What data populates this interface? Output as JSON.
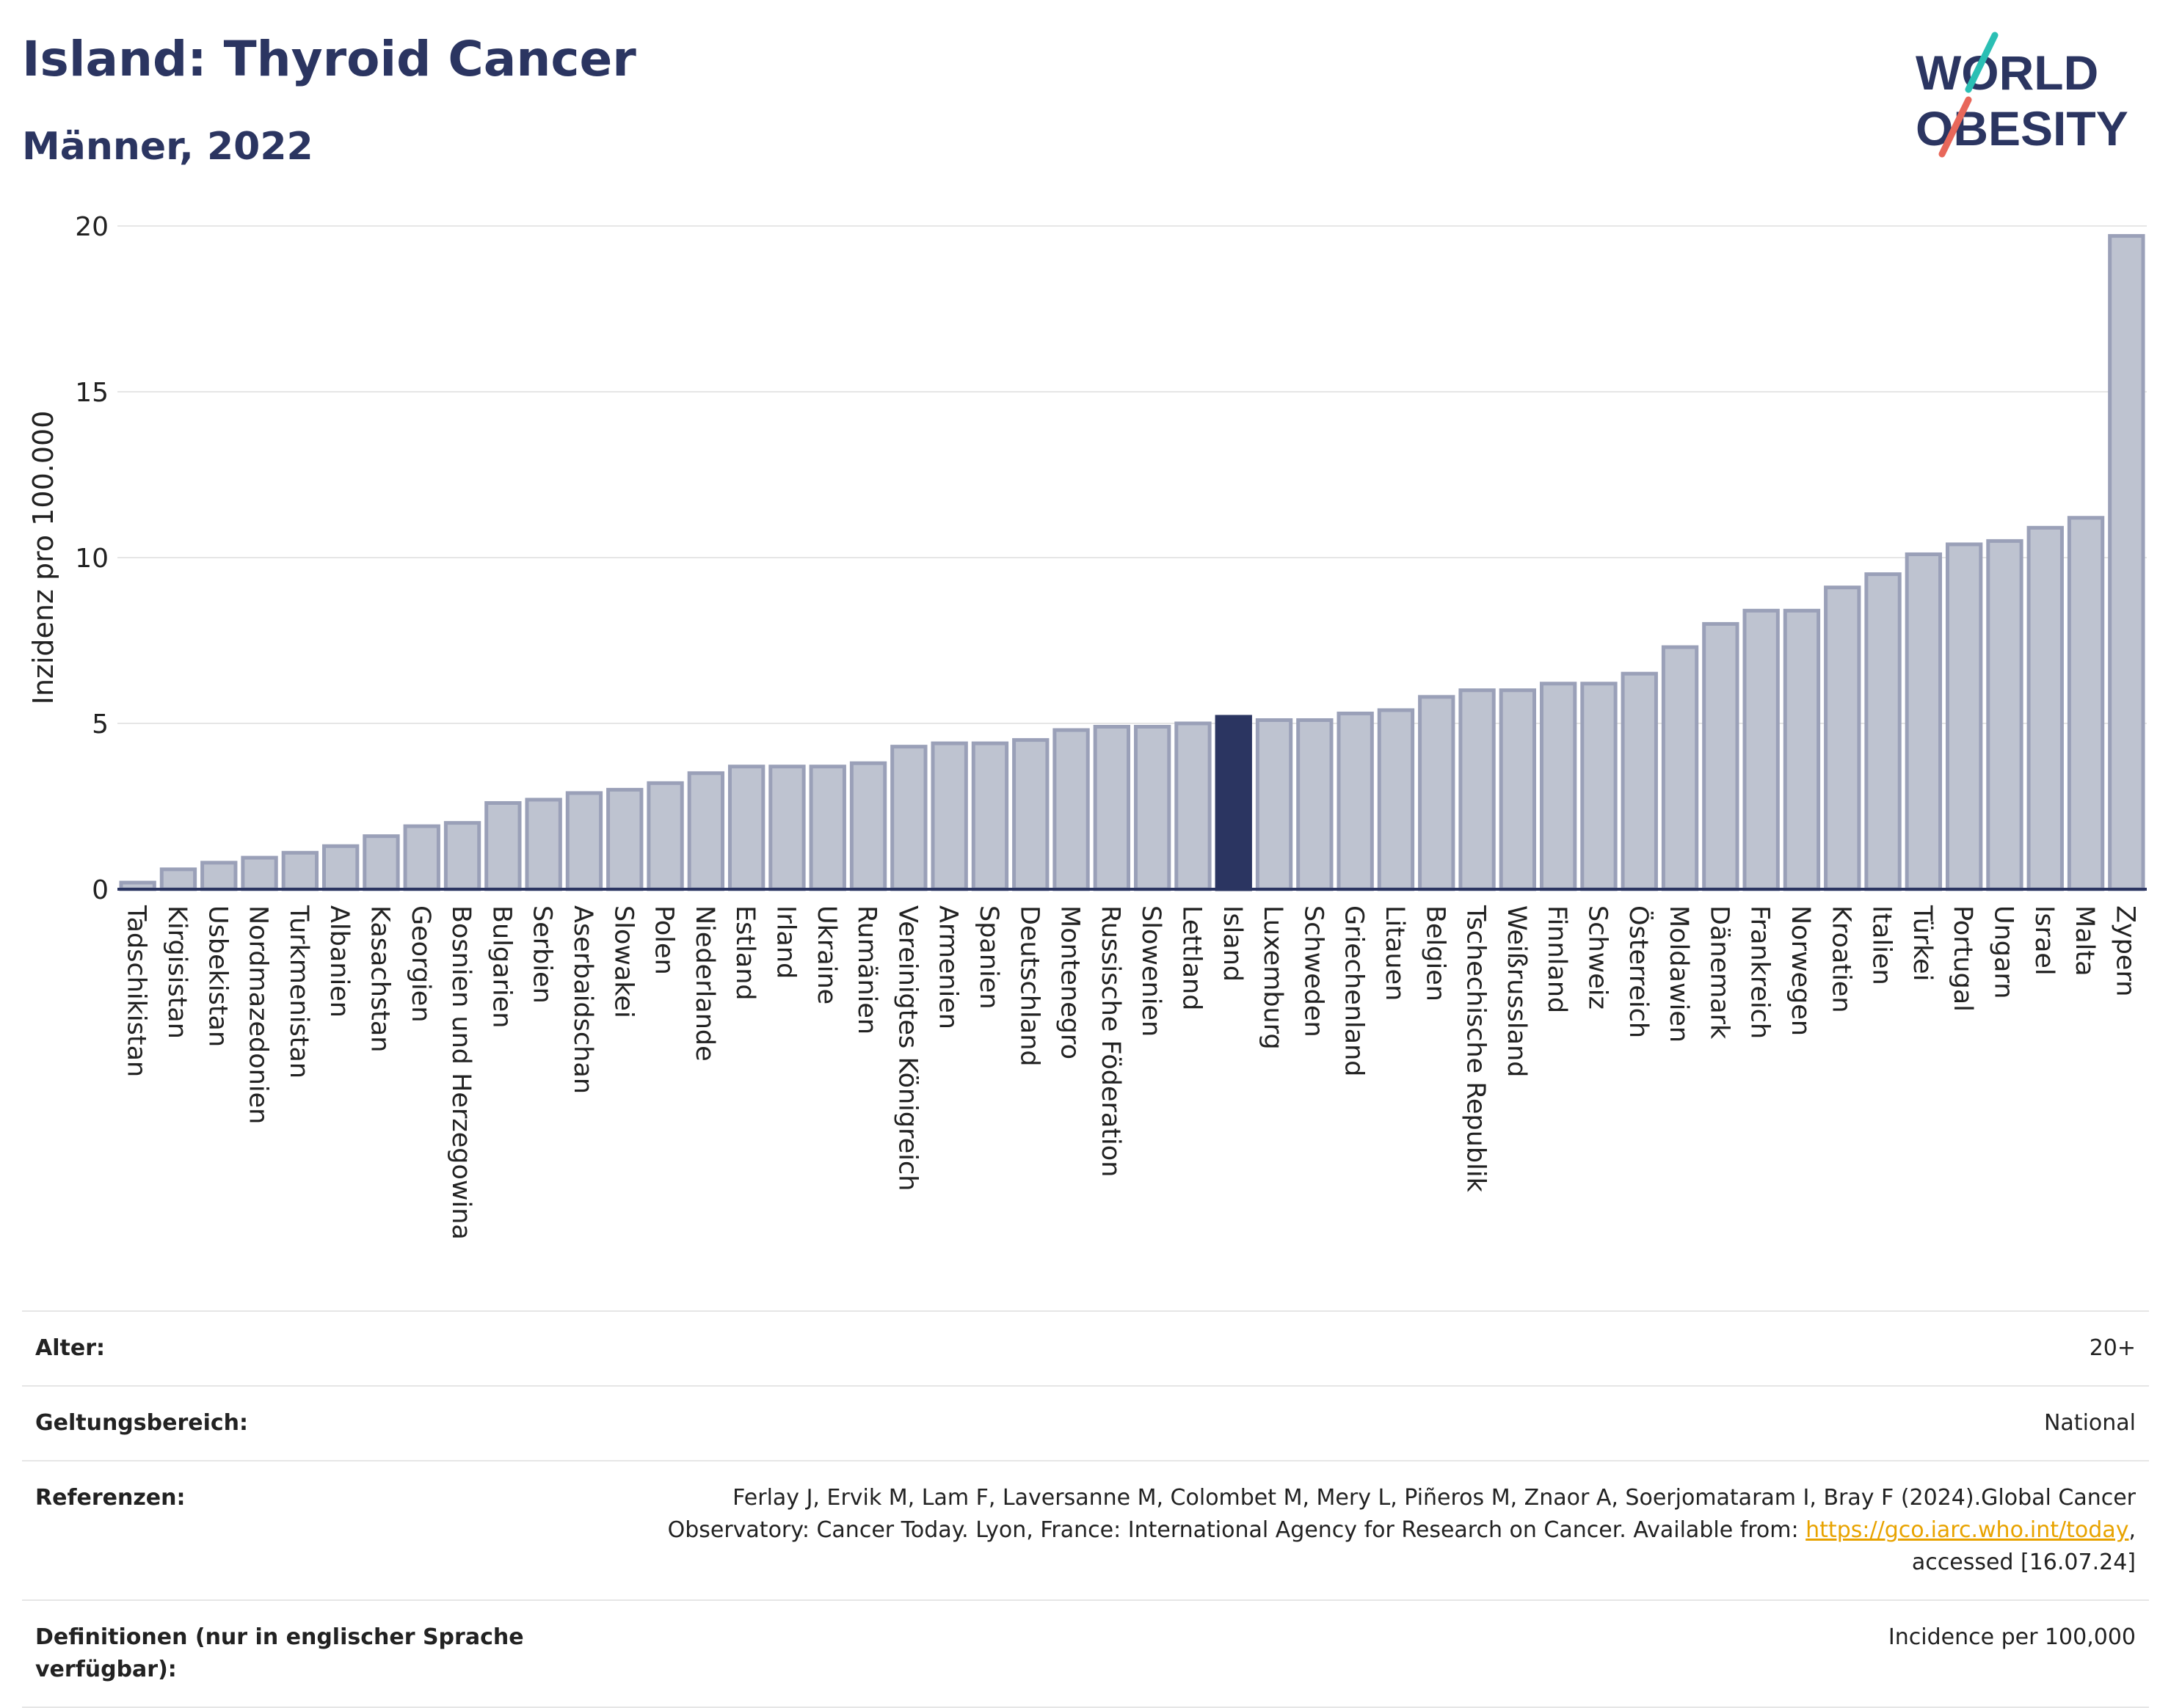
{
  "header": {
    "title": "Island: Thyroid Cancer",
    "subtitle": "Männer, 2022"
  },
  "logo": {
    "line1": "WORLD",
    "line2": "OBESITY",
    "accent_colors": [
      "#2bbfb4",
      "#e8675a"
    ]
  },
  "chart_data": {
    "type": "bar",
    "ylabel": "Inzidenz pro 100.000",
    "ylim": [
      0,
      20
    ],
    "yticks": [
      0,
      5,
      10,
      15,
      20
    ],
    "grid": true,
    "highlight_category": "Island",
    "colors": {
      "bar": "#bec3d0",
      "bar_border": "#9aa0b8",
      "highlight": "#2b3561",
      "grid": "#e6e6e6",
      "axis": "#2b3561"
    },
    "categories": [
      "Tadschikistan",
      "Kirgisistan",
      "Usbekistan",
      "Nordmazedonien",
      "Turkmenistan",
      "Albanien",
      "Kasachstan",
      "Georgien",
      "Bosnien und Herzegowina",
      "Bulgarien",
      "Serbien",
      "Aserbaidschan",
      "Slowakei",
      "Polen",
      "Niederlande",
      "Estland",
      "Irland",
      "Ukraine",
      "Rumänien",
      "Vereinigtes Königreich",
      "Armenien",
      "Spanien",
      "Deutschland",
      "Montenegro",
      "Russische Föderation",
      "Slowenien",
      "Lettland",
      "Island",
      "Luxemburg",
      "Schweden",
      "Griechenland",
      "Litauen",
      "Belgien",
      "Tschechische Republik",
      "Weißrussland",
      "Finnland",
      "Schweiz",
      "Österreich",
      "Moldawien",
      "Dänemark",
      "Frankreich",
      "Norwegen",
      "Kroatien",
      "Italien",
      "Türkei",
      "Portugal",
      "Ungarn",
      "Israel",
      "Malta",
      "Zypern"
    ],
    "values": [
      0.2,
      0.6,
      0.8,
      0.95,
      1.1,
      1.3,
      1.6,
      1.9,
      2.0,
      2.6,
      2.7,
      2.9,
      3.0,
      3.2,
      3.5,
      3.7,
      3.7,
      3.7,
      3.8,
      4.3,
      4.4,
      4.4,
      4.5,
      4.8,
      4.9,
      4.9,
      5.0,
      5.2,
      5.1,
      5.1,
      5.3,
      5.4,
      5.8,
      6.0,
      6.0,
      6.2,
      6.2,
      6.5,
      7.3,
      8.0,
      8.4,
      8.4,
      9.1,
      9.5,
      10.1,
      10.4,
      10.5,
      10.9,
      11.2,
      19.7
    ]
  },
  "meta": {
    "age_label": "Alter:",
    "age_value": "20+",
    "scope_label": "Geltungsbereich:",
    "scope_value": "National",
    "ref_label": "Referenzen:",
    "ref_text_1": "Ferlay J, Ervik M, Lam F, Laversanne M, Colombet M, Mery L, Piñeros M, Znaor A, Soerjomataram I, Bray F (2024).Global Cancer",
    "ref_text_2": "Observatory: Cancer Today. Lyon, France: International Agency for Research on Cancer. Available from: ",
    "ref_link": "https://gco.iarc.who.int/today",
    "ref_text_3": ",",
    "ref_text_4": "accessed [16.07.24]",
    "def_label": "Definitionen (nur in englischer Sprache verfügbar):",
    "def_value": "Incidence per 100,000"
  }
}
